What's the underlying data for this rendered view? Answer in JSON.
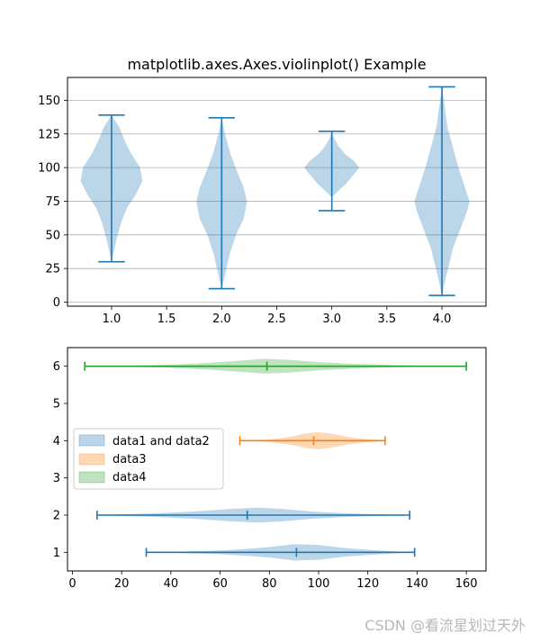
{
  "chart_data": [
    {
      "type": "violin",
      "orientation": "vertical",
      "title": "matplotlib.axes.Axes.violinplot() Example",
      "xlim": [
        0.6,
        4.4
      ],
      "ylim": [
        -3,
        167
      ],
      "xticks": [
        1.0,
        1.5,
        2.0,
        2.5,
        3.0,
        3.5,
        4.0
      ],
      "xtick_labels": [
        "1.0",
        "1.5",
        "2.0",
        "2.5",
        "3.0",
        "3.5",
        "4.0"
      ],
      "yticks": [
        0,
        25,
        50,
        75,
        100,
        125,
        150
      ],
      "ytick_labels": [
        "0",
        "25",
        "50",
        "75",
        "100",
        "125",
        "150"
      ],
      "grid": "y",
      "show_extrema": true,
      "show_median": false,
      "violins": [
        {
          "position": 1,
          "min": 30,
          "max": 139,
          "color": "#1f77b4",
          "profile": [
            [
              30,
              0.0
            ],
            [
              45,
              0.04
            ],
            [
              60,
              0.09
            ],
            [
              70,
              0.14
            ],
            [
              80,
              0.22
            ],
            [
              90,
              0.28
            ],
            [
              100,
              0.26
            ],
            [
              110,
              0.18
            ],
            [
              120,
              0.12
            ],
            [
              130,
              0.07
            ],
            [
              139,
              0.0
            ]
          ]
        },
        {
          "position": 2,
          "min": 10,
          "max": 137,
          "color": "#1f77b4",
          "profile": [
            [
              10,
              0.0
            ],
            [
              20,
              0.03
            ],
            [
              35,
              0.07
            ],
            [
              50,
              0.13
            ],
            [
              62,
              0.2
            ],
            [
              75,
              0.23
            ],
            [
              85,
              0.2
            ],
            [
              97,
              0.14
            ],
            [
              110,
              0.08
            ],
            [
              125,
              0.03
            ],
            [
              137,
              0.0
            ]
          ]
        },
        {
          "position": 3,
          "min": 68,
          "max": 127,
          "color": "#1f77b4",
          "profile": [
            [
              78,
              0.0
            ],
            [
              82,
              0.05
            ],
            [
              88,
              0.13
            ],
            [
              95,
              0.2
            ],
            [
              100,
              0.25
            ],
            [
              105,
              0.2
            ],
            [
              110,
              0.12
            ],
            [
              116,
              0.06
            ],
            [
              122,
              0.02
            ],
            [
              126,
              0.0
            ]
          ]
        },
        {
          "position": 4,
          "min": 5,
          "max": 160,
          "color": "#1f77b4",
          "profile": [
            [
              5,
              0.0
            ],
            [
              20,
              0.04
            ],
            [
              40,
              0.1
            ],
            [
              55,
              0.17
            ],
            [
              68,
              0.23
            ],
            [
              75,
              0.25
            ],
            [
              85,
              0.21
            ],
            [
              100,
              0.15
            ],
            [
              115,
              0.1
            ],
            [
              130,
              0.05
            ],
            [
              145,
              0.025
            ],
            [
              160,
              0.0
            ]
          ]
        }
      ]
    },
    {
      "type": "violin",
      "orientation": "horizontal",
      "xlim": [
        -2,
        168
      ],
      "ylim": [
        0.5,
        6.5
      ],
      "xticks": [
        0,
        20,
        40,
        60,
        80,
        100,
        120,
        140,
        160
      ],
      "xtick_labels": [
        "0",
        "20",
        "40",
        "60",
        "80",
        "100",
        "120",
        "140",
        "160"
      ],
      "yticks": [
        1,
        2,
        3,
        4,
        5,
        6
      ],
      "ytick_labels": [
        "1",
        "2",
        "3",
        "4",
        "5",
        "6"
      ],
      "grid": "none",
      "show_extrema": true,
      "show_median": true,
      "legend": {
        "placement": "center-left",
        "entries": [
          {
            "label": "data1 and data2",
            "color": "#1f77b4"
          },
          {
            "label": "data3",
            "color": "#ff7f0e"
          },
          {
            "label": "data4",
            "color": "#2ca02c"
          }
        ]
      },
      "violins": [
        {
          "position": 1,
          "min": 30,
          "max": 139,
          "median": 91,
          "color": "#1f77b4",
          "profile": [
            [
              30,
              0.0
            ],
            [
              45,
              0.02
            ],
            [
              60,
              0.05
            ],
            [
              70,
              0.09
            ],
            [
              80,
              0.14
            ],
            [
              90,
              0.22
            ],
            [
              100,
              0.2
            ],
            [
              110,
              0.12
            ],
            [
              120,
              0.07
            ],
            [
              130,
              0.03
            ],
            [
              139,
              0.0
            ]
          ]
        },
        {
          "position": 2,
          "min": 10,
          "max": 137,
          "median": 71,
          "color": "#1f77b4",
          "profile": [
            [
              10,
              0.0
            ],
            [
              20,
              0.02
            ],
            [
              35,
              0.05
            ],
            [
              50,
              0.1
            ],
            [
              65,
              0.17
            ],
            [
              75,
              0.2
            ],
            [
              85,
              0.17
            ],
            [
              97,
              0.1
            ],
            [
              110,
              0.05
            ],
            [
              125,
              0.02
            ],
            [
              137,
              0.0
            ]
          ]
        },
        {
          "position": 4,
          "min": 68,
          "max": 127,
          "median": 98,
          "color": "#ff7f0e",
          "profile": [
            [
              72,
              0.0
            ],
            [
              80,
              0.03
            ],
            [
              88,
              0.1
            ],
            [
              95,
              0.2
            ],
            [
              100,
              0.23
            ],
            [
              106,
              0.18
            ],
            [
              112,
              0.1
            ],
            [
              118,
              0.05
            ],
            [
              124,
              0.02
            ],
            [
              127,
              0.0
            ]
          ]
        },
        {
          "position": 6,
          "min": 5,
          "max": 160,
          "median": 79,
          "color": "#2ca02c",
          "profile": [
            [
              5,
              0.0
            ],
            [
              20,
              0.01
            ],
            [
              40,
              0.04
            ],
            [
              55,
              0.09
            ],
            [
              68,
              0.15
            ],
            [
              78,
              0.2
            ],
            [
              88,
              0.17
            ],
            [
              100,
              0.11
            ],
            [
              115,
              0.06
            ],
            [
              130,
              0.03
            ],
            [
              145,
              0.012
            ],
            [
              160,
              0.0
            ]
          ]
        }
      ]
    }
  ],
  "watermark": "CSDN @看流星划过天外"
}
